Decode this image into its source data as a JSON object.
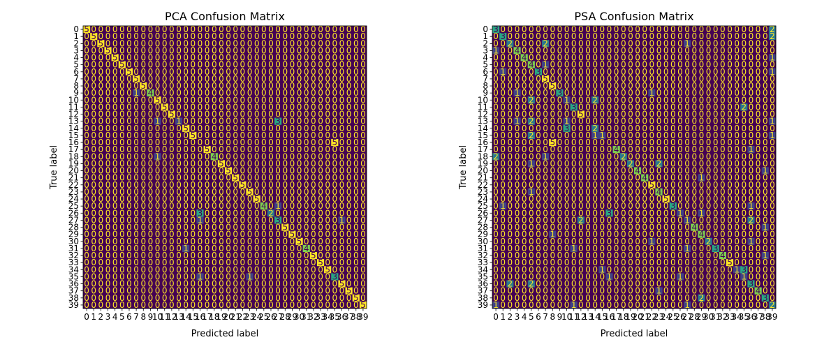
{
  "chart_data": [
    {
      "type": "heatmap",
      "title": "PCA Confusion Matrix",
      "xlabel": "Predicted label",
      "ylabel": "True label",
      "size": 40,
      "colormap": "viridis",
      "vmin": 0,
      "vmax": 5,
      "text_color_low": "#fde725",
      "text_color_high": "#440154",
      "ticks": [
        "0",
        "1",
        "2",
        "3",
        "4",
        "5",
        "6",
        "7",
        "8",
        "9",
        "10",
        "11",
        "12",
        "13",
        "14",
        "15",
        "16",
        "17",
        "18",
        "19",
        "20",
        "21",
        "22",
        "23",
        "24",
        "25",
        "26",
        "27",
        "28",
        "29",
        "30",
        "31",
        "32",
        "33",
        "34",
        "35",
        "36",
        "37",
        "38",
        "39"
      ],
      "nonzero": [
        [
          0,
          0,
          5
        ],
        [
          1,
          1,
          5
        ],
        [
          2,
          2,
          5
        ],
        [
          3,
          3,
          5
        ],
        [
          4,
          4,
          5
        ],
        [
          5,
          5,
          5
        ],
        [
          6,
          6,
          5
        ],
        [
          7,
          7,
          5
        ],
        [
          8,
          8,
          5
        ],
        [
          9,
          7,
          1
        ],
        [
          9,
          9,
          4
        ],
        [
          10,
          10,
          5
        ],
        [
          11,
          11,
          5
        ],
        [
          12,
          12,
          5
        ],
        [
          13,
          10,
          1
        ],
        [
          13,
          13,
          1
        ],
        [
          13,
          27,
          3
        ],
        [
          14,
          14,
          5
        ],
        [
          15,
          15,
          5
        ],
        [
          16,
          35,
          5
        ],
        [
          17,
          17,
          5
        ],
        [
          18,
          10,
          1
        ],
        [
          18,
          18,
          4
        ],
        [
          19,
          19,
          5
        ],
        [
          20,
          20,
          5
        ],
        [
          21,
          21,
          5
        ],
        [
          22,
          22,
          5
        ],
        [
          23,
          23,
          5
        ],
        [
          24,
          24,
          5
        ],
        [
          25,
          25,
          4
        ],
        [
          25,
          27,
          1
        ],
        [
          26,
          16,
          3
        ],
        [
          26,
          26,
          2
        ],
        [
          27,
          16,
          1
        ],
        [
          27,
          27,
          3
        ],
        [
          27,
          36,
          1
        ],
        [
          28,
          28,
          5
        ],
        [
          29,
          29,
          5
        ],
        [
          30,
          30,
          5
        ],
        [
          31,
          14,
          1
        ],
        [
          31,
          31,
          4
        ],
        [
          32,
          32,
          5
        ],
        [
          33,
          33,
          5
        ],
        [
          34,
          34,
          5
        ],
        [
          35,
          16,
          1
        ],
        [
          35,
          23,
          1
        ],
        [
          35,
          35,
          3
        ],
        [
          36,
          36,
          5
        ],
        [
          37,
          37,
          5
        ],
        [
          38,
          38,
          5
        ],
        [
          39,
          39,
          5
        ]
      ]
    },
    {
      "type": "heatmap",
      "title": "PSA Confusion Matrix",
      "xlabel": "Predicted label",
      "ylabel": "True label",
      "size": 40,
      "colormap": "viridis",
      "vmin": 0,
      "vmax": 5,
      "text_color_low": "#fde725",
      "text_color_high": "#440154",
      "ticks": [
        "0",
        "1",
        "2",
        "3",
        "4",
        "5",
        "6",
        "7",
        "8",
        "9",
        "10",
        "11",
        "12",
        "13",
        "14",
        "15",
        "16",
        "17",
        "18",
        "19",
        "20",
        "21",
        "22",
        "23",
        "24",
        "25",
        "26",
        "27",
        "28",
        "29",
        "30",
        "31",
        "32",
        "33",
        "34",
        "35",
        "36",
        "37",
        "38",
        "39"
      ],
      "nonzero": [
        [
          0,
          0,
          3
        ],
        [
          0,
          39,
          2
        ],
        [
          1,
          1,
          3
        ],
        [
          1,
          39,
          2
        ],
        [
          2,
          2,
          2
        ],
        [
          2,
          7,
          2
        ],
        [
          2,
          27,
          1
        ],
        [
          3,
          0,
          1
        ],
        [
          3,
          3,
          4
        ],
        [
          4,
          4,
          4
        ],
        [
          4,
          39,
          1
        ],
        [
          5,
          5,
          4
        ],
        [
          5,
          7,
          1
        ],
        [
          6,
          1,
          1
        ],
        [
          6,
          6,
          3
        ],
        [
          6,
          39,
          1
        ],
        [
          7,
          7,
          5
        ],
        [
          8,
          8,
          5
        ],
        [
          9,
          3,
          1
        ],
        [
          9,
          9,
          3
        ],
        [
          9,
          22,
          1
        ],
        [
          10,
          5,
          2
        ],
        [
          10,
          10,
          1
        ],
        [
          10,
          14,
          2
        ],
        [
          11,
          11,
          3
        ],
        [
          11,
          35,
          2
        ],
        [
          12,
          12,
          5
        ],
        [
          13,
          3,
          1
        ],
        [
          13,
          5,
          2
        ],
        [
          13,
          10,
          1
        ],
        [
          13,
          39,
          1
        ],
        [
          14,
          10,
          3
        ],
        [
          14,
          14,
          2
        ],
        [
          15,
          5,
          2
        ],
        [
          15,
          14,
          1
        ],
        [
          15,
          15,
          1
        ],
        [
          15,
          39,
          1
        ],
        [
          16,
          8,
          5
        ],
        [
          17,
          17,
          4
        ],
        [
          17,
          36,
          1
        ],
        [
          18,
          0,
          2
        ],
        [
          18,
          7,
          1
        ],
        [
          18,
          18,
          2
        ],
        [
          19,
          5,
          1
        ],
        [
          19,
          19,
          2
        ],
        [
          19,
          23,
          2
        ],
        [
          20,
          20,
          4
        ],
        [
          20,
          38,
          1
        ],
        [
          21,
          21,
          4
        ],
        [
          21,
          29,
          1
        ],
        [
          22,
          22,
          5
        ],
        [
          23,
          5,
          1
        ],
        [
          23,
          23,
          4
        ],
        [
          24,
          24,
          5
        ],
        [
          25,
          1,
          1
        ],
        [
          25,
          25,
          3
        ],
        [
          25,
          36,
          1
        ],
        [
          26,
          16,
          3
        ],
        [
          26,
          26,
          1
        ],
        [
          26,
          29,
          1
        ],
        [
          27,
          12,
          2
        ],
        [
          27,
          27,
          1
        ],
        [
          27,
          36,
          2
        ],
        [
          28,
          28,
          4
        ],
        [
          28,
          38,
          1
        ],
        [
          29,
          8,
          1
        ],
        [
          29,
          29,
          4
        ],
        [
          30,
          22,
          1
        ],
        [
          30,
          30,
          2
        ],
        [
          30,
          36,
          1
        ],
        [
          31,
          11,
          1
        ],
        [
          31,
          27,
          1
        ],
        [
          31,
          31,
          3
        ],
        [
          32,
          32,
          4
        ],
        [
          32,
          38,
          1
        ],
        [
          33,
          33,
          5
        ],
        [
          34,
          15,
          1
        ],
        [
          34,
          34,
          1
        ],
        [
          34,
          35,
          3
        ],
        [
          35,
          16,
          1
        ],
        [
          35,
          26,
          1
        ],
        [
          35,
          35,
          1
        ],
        [
          36,
          2,
          2
        ],
        [
          36,
          5,
          2
        ],
        [
          36,
          36,
          3
        ],
        [
          37,
          23,
          1
        ],
        [
          37,
          37,
          4
        ],
        [
          38,
          29,
          2
        ],
        [
          38,
          38,
          3
        ],
        [
          39,
          0,
          1
        ],
        [
          39,
          11,
          1
        ],
        [
          39,
          27,
          1
        ],
        [
          39,
          39,
          2
        ]
      ]
    }
  ]
}
